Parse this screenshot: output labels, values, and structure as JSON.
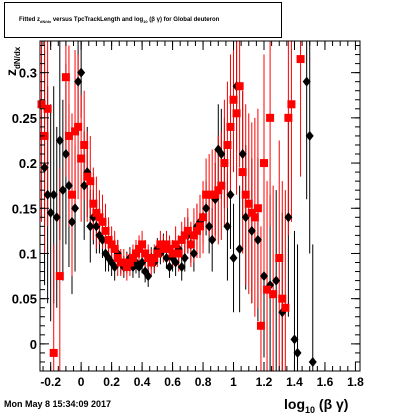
{
  "title": {
    "main": "Fitted",
    "z_symbol": "z",
    "z_sub": "dN/dx",
    "middle": "versus TpcTrackLength and log",
    "log_sub": "10",
    "end": "(β γ) for Global deuteron"
  },
  "footer": "Mon May  8 15:34:09 2017",
  "chart_data": {
    "type": "scatter",
    "title": "Fitted z_{dN/dx} versus TpcTrackLength and log_{10} (β γ) for Global deuteron",
    "xlabel": "log_{10} (β γ)",
    "ylabel": "z_{dN/dx}",
    "xlim": [
      -0.27,
      1.83
    ],
    "ylim": [
      -0.03,
      0.335
    ],
    "x_ticks": [
      -0.2,
      0,
      0.2,
      0.4,
      0.6,
      0.8,
      1,
      1.2,
      1.4,
      1.6,
      1.8
    ],
    "x_tick_labels": [
      "-0.2",
      "0",
      "0.2",
      "0.4",
      "0.6",
      "0.8",
      "1",
      "1.2",
      "1.4",
      "1.6",
      "1.8"
    ],
    "y_ticks": [
      0,
      0.05,
      0.1,
      0.15,
      0.2,
      0.25,
      0.3
    ],
    "y_tick_labels": [
      "0",
      "0.05",
      "0.1",
      "0.15",
      "0.2",
      "0.25",
      "0.3"
    ],
    "grid": false,
    "legend": "none",
    "series": [
      {
        "color": "#000000",
        "marker": "diamond",
        "points": [
          [
            -0.24,
            0.195,
            0.13
          ],
          [
            -0.22,
            0.165,
            0.12
          ],
          [
            -0.2,
            0.145,
            0.12
          ],
          [
            -0.18,
            0.165,
            0.12
          ],
          [
            -0.16,
            0.14,
            0.1
          ],
          [
            -0.14,
            0.225,
            0.11
          ],
          [
            -0.12,
            0.17,
            0.1
          ],
          [
            -0.1,
            0.21,
            0.1
          ],
          [
            -0.08,
            0.175,
            0.09
          ],
          [
            -0.06,
            0.135,
            0.08
          ],
          [
            -0.04,
            0.15,
            0.07
          ],
          [
            -0.02,
            0.29,
            0.05
          ],
          [
            0.0,
            0.3,
            0.05
          ],
          [
            0.02,
            0.175,
            0.06
          ],
          [
            0.04,
            0.19,
            0.05
          ],
          [
            0.06,
            0.13,
            0.04
          ],
          [
            0.08,
            0.14,
            0.03
          ],
          [
            0.1,
            0.13,
            0.03
          ],
          [
            0.12,
            0.12,
            0.02
          ],
          [
            0.14,
            0.115,
            0.02
          ],
          [
            0.16,
            0.1,
            0.02
          ],
          [
            0.18,
            0.095,
            0.015
          ],
          [
            0.2,
            0.09,
            0.015
          ],
          [
            0.22,
            0.085,
            0.015
          ],
          [
            0.24,
            0.1,
            0.015
          ],
          [
            0.26,
            0.09,
            0.012
          ],
          [
            0.28,
            0.085,
            0.012
          ],
          [
            0.3,
            0.09,
            0.012
          ],
          [
            0.32,
            0.095,
            0.012
          ],
          [
            0.34,
            0.085,
            0.012
          ],
          [
            0.36,
            0.09,
            0.012
          ],
          [
            0.38,
            0.085,
            0.012
          ],
          [
            0.4,
            0.09,
            0.012
          ],
          [
            0.42,
            0.08,
            0.012
          ],
          [
            0.44,
            0.075,
            0.012
          ],
          [
            0.46,
            0.095,
            0.012
          ],
          [
            0.48,
            0.09,
            0.012
          ],
          [
            0.5,
            0.105,
            0.012
          ],
          [
            0.52,
            0.1,
            0.012
          ],
          [
            0.54,
            0.11,
            0.012
          ],
          [
            0.56,
            0.095,
            0.012
          ],
          [
            0.58,
            0.085,
            0.012
          ],
          [
            0.6,
            0.095,
            0.015
          ],
          [
            0.62,
            0.09,
            0.015
          ],
          [
            0.64,
            0.105,
            0.015
          ],
          [
            0.66,
            0.085,
            0.015
          ],
          [
            0.68,
            0.095,
            0.015
          ],
          [
            0.7,
            0.12,
            0.02
          ],
          [
            0.72,
            0.11,
            0.02
          ],
          [
            0.74,
            0.1,
            0.02
          ],
          [
            0.76,
            0.13,
            0.025
          ],
          [
            0.78,
            0.135,
            0.025
          ],
          [
            0.8,
            0.14,
            0.03
          ],
          [
            0.82,
            0.15,
            0.03
          ],
          [
            0.84,
            0.13,
            0.03
          ],
          [
            0.86,
            0.115,
            0.035
          ],
          [
            0.88,
            0.16,
            0.04
          ],
          [
            0.9,
            0.215,
            0.05
          ],
          [
            0.92,
            0.21,
            0.05
          ],
          [
            0.94,
            0.2,
            0.05
          ],
          [
            0.96,
            0.13,
            0.06
          ],
          [
            0.98,
            0.165,
            0.06
          ],
          [
            1.0,
            0.095,
            0.06
          ],
          [
            1.02,
            0.285,
            0.07
          ],
          [
            1.04,
            0.105,
            0.07
          ],
          [
            1.06,
            0.21,
            0.07
          ],
          [
            1.08,
            0.14,
            0.08
          ],
          [
            1.12,
            0.125,
            0.08
          ],
          [
            1.16,
            0.115,
            0.09
          ],
          [
            1.2,
            0.075,
            0.09
          ],
          [
            1.24,
            0.065,
            0.1
          ],
          [
            1.28,
            0.07,
            0.1
          ],
          [
            1.32,
            0.035,
            0.11
          ],
          [
            1.36,
            0.14,
            0.11
          ],
          [
            1.4,
            0.005,
            0.12
          ],
          [
            1.42,
            -0.01,
            0.12
          ],
          [
            1.48,
            0.29,
            0.13
          ],
          [
            1.5,
            0.23,
            0.13
          ],
          [
            1.52,
            -0.02,
            0.13
          ]
        ]
      },
      {
        "color": "#ff0000",
        "marker": "square",
        "points": [
          [
            -0.26,
            0.265,
            0.13
          ],
          [
            -0.24,
            0.23,
            0.13
          ],
          [
            -0.22,
            0.26,
            0.13
          ],
          [
            -0.18,
            -0.01,
            0.12
          ],
          [
            -0.14,
            0.075,
            0.12
          ],
          [
            -0.1,
            0.295,
            0.11
          ],
          [
            -0.08,
            0.23,
            0.1
          ],
          [
            -0.06,
            0.165,
            0.09
          ],
          [
            -0.04,
            0.235,
            0.09
          ],
          [
            -0.02,
            0.24,
            0.08
          ],
          [
            0.0,
            0.205,
            0.07
          ],
          [
            0.02,
            0.22,
            0.06
          ],
          [
            0.04,
            0.185,
            0.05
          ],
          [
            0.06,
            0.18,
            0.05
          ],
          [
            0.08,
            0.155,
            0.04
          ],
          [
            0.1,
            0.145,
            0.04
          ],
          [
            0.12,
            0.14,
            0.03
          ],
          [
            0.14,
            0.135,
            0.03
          ],
          [
            0.16,
            0.125,
            0.03
          ],
          [
            0.18,
            0.115,
            0.025
          ],
          [
            0.2,
            0.11,
            0.02
          ],
          [
            0.22,
            0.105,
            0.02
          ],
          [
            0.24,
            0.095,
            0.02
          ],
          [
            0.26,
            0.09,
            0.015
          ],
          [
            0.28,
            0.09,
            0.015
          ],
          [
            0.3,
            0.085,
            0.015
          ],
          [
            0.32,
            0.09,
            0.015
          ],
          [
            0.34,
            0.095,
            0.015
          ],
          [
            0.36,
            0.1,
            0.015
          ],
          [
            0.38,
            0.105,
            0.015
          ],
          [
            0.4,
            0.11,
            0.015
          ],
          [
            0.42,
            0.1,
            0.015
          ],
          [
            0.44,
            0.095,
            0.015
          ],
          [
            0.46,
            0.09,
            0.015
          ],
          [
            0.48,
            0.095,
            0.015
          ],
          [
            0.5,
            0.1,
            0.015
          ],
          [
            0.52,
            0.11,
            0.015
          ],
          [
            0.54,
            0.105,
            0.015
          ],
          [
            0.56,
            0.11,
            0.015
          ],
          [
            0.58,
            0.105,
            0.015
          ],
          [
            0.6,
            0.1,
            0.015
          ],
          [
            0.62,
            0.11,
            0.02
          ],
          [
            0.64,
            0.1,
            0.02
          ],
          [
            0.66,
            0.115,
            0.02
          ],
          [
            0.68,
            0.12,
            0.02
          ],
          [
            0.7,
            0.125,
            0.025
          ],
          [
            0.72,
            0.11,
            0.025
          ],
          [
            0.74,
            0.12,
            0.03
          ],
          [
            0.76,
            0.125,
            0.03
          ],
          [
            0.78,
            0.13,
            0.035
          ],
          [
            0.8,
            0.14,
            0.04
          ],
          [
            0.82,
            0.165,
            0.04
          ],
          [
            0.84,
            0.165,
            0.045
          ],
          [
            0.86,
            0.165,
            0.05
          ],
          [
            0.88,
            0.165,
            0.05
          ],
          [
            0.9,
            0.17,
            0.06
          ],
          [
            0.92,
            0.175,
            0.06
          ],
          [
            0.94,
            0.2,
            0.07
          ],
          [
            0.96,
            0.22,
            0.07
          ],
          [
            0.98,
            0.24,
            0.08
          ],
          [
            1.0,
            0.27,
            0.08
          ],
          [
            1.02,
            0.255,
            0.09
          ],
          [
            1.04,
            0.285,
            0.09
          ],
          [
            1.06,
            0.19,
            0.09
          ],
          [
            1.08,
            0.165,
            0.1
          ],
          [
            1.1,
            0.155,
            0.1
          ],
          [
            1.12,
            0.145,
            0.1
          ],
          [
            1.14,
            0.14,
            0.11
          ],
          [
            1.16,
            0.15,
            0.11
          ],
          [
            1.18,
            0.02,
            0.11
          ],
          [
            1.2,
            0.2,
            0.12
          ],
          [
            1.22,
            0.06,
            0.12
          ],
          [
            1.24,
            0.25,
            0.12
          ],
          [
            1.26,
            0.055,
            0.12
          ],
          [
            1.3,
            0.095,
            0.13
          ],
          [
            1.32,
            0.05,
            0.13
          ],
          [
            1.34,
            0.04,
            0.13
          ],
          [
            1.36,
            0.25,
            0.13
          ],
          [
            1.38,
            0.265,
            0.13
          ],
          [
            1.44,
            0.315,
            0.13
          ]
        ]
      }
    ]
  }
}
